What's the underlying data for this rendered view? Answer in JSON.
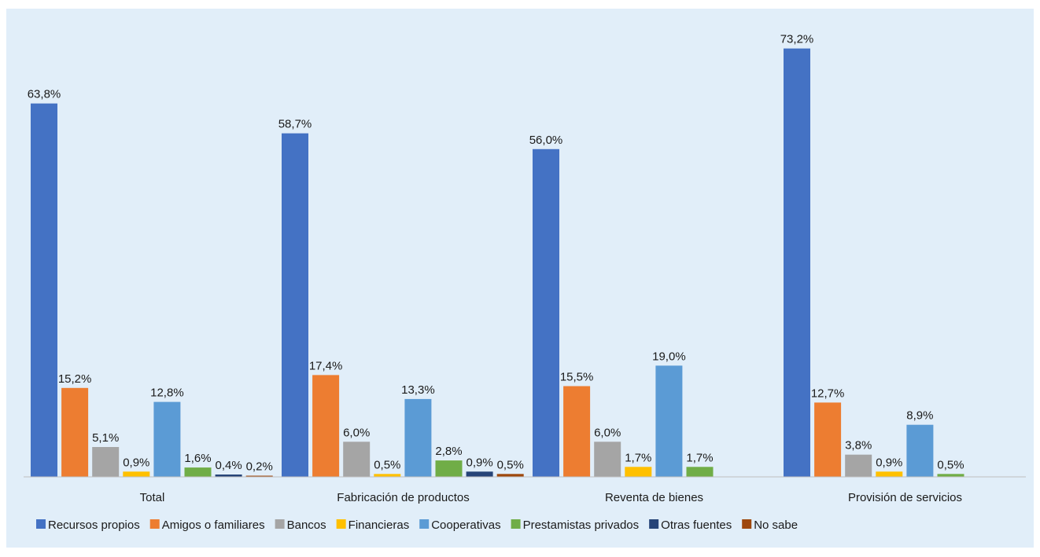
{
  "chart_data": {
    "type": "bar",
    "categories": [
      "Total",
      "Fabricación de productos",
      "Reventa de bienes",
      "Provisión de servicios"
    ],
    "series": [
      {
        "name": "Recursos propios",
        "color": "#4472c4",
        "values": [
          63.8,
          58.7,
          56.0,
          73.2
        ],
        "labels": [
          "63,8%",
          "58,7%",
          "56,0%",
          "73,2%"
        ]
      },
      {
        "name": "Amigos o familiares",
        "color": "#ed7d31",
        "values": [
          15.2,
          17.4,
          15.5,
          12.7
        ],
        "labels": [
          "15,2%",
          "17,4%",
          "15,5%",
          "12,7%"
        ]
      },
      {
        "name": "Bancos",
        "color": "#a5a5a5",
        "values": [
          5.1,
          6.0,
          6.0,
          3.8
        ],
        "labels": [
          "5,1%",
          "6,0%",
          "6,0%",
          "3,8%"
        ]
      },
      {
        "name": "Financieras",
        "color": "#ffc000",
        "values": [
          0.9,
          0.5,
          1.7,
          0.9
        ],
        "labels": [
          "0,9%",
          "0,5%",
          "1,7%",
          "0,9%"
        ]
      },
      {
        "name": "Cooperativas",
        "color": "#5b9bd5",
        "values": [
          12.8,
          13.3,
          19.0,
          8.9
        ],
        "labels": [
          "12,8%",
          "13,3%",
          "19,0%",
          "8,9%"
        ]
      },
      {
        "name": "Prestamistas privados",
        "color": "#70ad47",
        "values": [
          1.6,
          2.8,
          1.7,
          0.5
        ],
        "labels": [
          "1,6%",
          "2,8%",
          "1,7%",
          "0,5%"
        ]
      },
      {
        "name": "Otras fuentes",
        "color": "#264478",
        "values": [
          0.4,
          0.9,
          null,
          null
        ],
        "labels": [
          "0,4%",
          "0,9%",
          null,
          null
        ]
      },
      {
        "name": "No sabe",
        "color": "#9e480e",
        "values": [
          0.2,
          0.5,
          null,
          null
        ],
        "labels": [
          "0,2%",
          "0,5%",
          null,
          null
        ]
      }
    ],
    "ylim": [
      0,
      80
    ],
    "grid": false,
    "legend_position": "bottom",
    "title": "",
    "xlabel": "",
    "ylabel": ""
  }
}
